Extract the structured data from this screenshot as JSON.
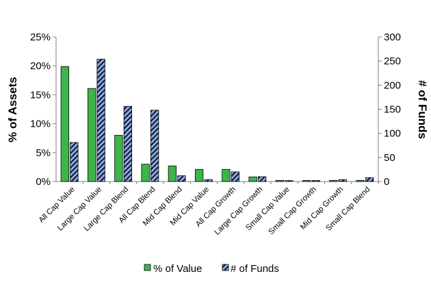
{
  "chart_data": {
    "type": "bar",
    "categories": [
      "All Cap Value",
      "Large Cap Value",
      "Large Cap Blend",
      "All Cap Blend",
      "Mid Cap Blend",
      "Mid Cap Value",
      "All Cap Growth",
      "Large Cap Growth",
      "Small Cap Value",
      "Small Cap Growth",
      "Mid Cap Growth",
      "Small Cap Blend"
    ],
    "series": [
      {
        "name": "% of Value",
        "axis": "left",
        "color": "#3cb54a",
        "values": [
          19.9,
          16.1,
          8.0,
          3.0,
          2.7,
          2.1,
          2.1,
          0.8,
          0.2,
          0.2,
          0.2,
          0.2
        ]
      },
      {
        "name": "# of Funds",
        "axis": "right",
        "color": "#8ea9db",
        "pattern": "diagonal-stripes",
        "values": [
          81,
          254,
          156,
          148,
          12,
          4,
          20,
          10,
          2,
          2,
          4,
          8
        ]
      }
    ],
    "ylabel": "% of Assets",
    "y2label": "# of Funds",
    "ylim": [
      0,
      25
    ],
    "y2lim": [
      0,
      300
    ],
    "yticks": [
      "0%",
      "5%",
      "10%",
      "15%",
      "20%",
      "25%"
    ],
    "y2ticks": [
      "0",
      "50",
      "100",
      "150",
      "200",
      "250",
      "300"
    ],
    "grid": false,
    "legend_position": "bottom"
  }
}
